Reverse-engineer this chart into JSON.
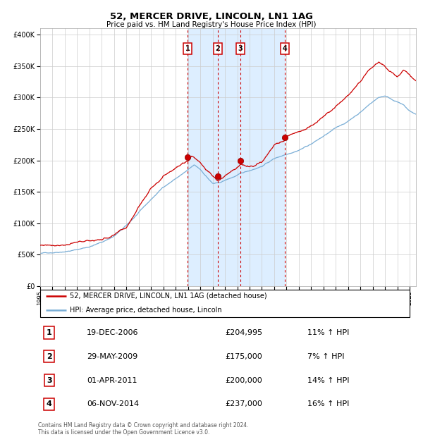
{
  "title": "52, MERCER DRIVE, LINCOLN, LN1 1AG",
  "subtitle": "Price paid vs. HM Land Registry's House Price Index (HPI)",
  "footer": "Contains HM Land Registry data © Crown copyright and database right 2024.\nThis data is licensed under the Open Government Licence v3.0.",
  "legend_line1": "52, MERCER DRIVE, LINCOLN, LN1 1AG (detached house)",
  "legend_line2": "HPI: Average price, detached house, Lincoln",
  "transactions": [
    {
      "label": "1",
      "date": "19-DEC-2006",
      "price": "£204,995",
      "pct": "11% ↑ HPI",
      "year": 2006.97
    },
    {
      "label": "2",
      "date": "29-MAY-2009",
      "price": "£175,000",
      "pct": "7% ↑ HPI",
      "year": 2009.41
    },
    {
      "label": "3",
      "date": "01-APR-2011",
      "price": "£200,000",
      "pct": "14% ↑ HPI",
      "year": 2011.25
    },
    {
      "label": "4",
      "date": "06-NOV-2014",
      "price": "£237,000",
      "pct": "16% ↑ HPI",
      "year": 2014.85
    }
  ],
  "transaction_prices": [
    204995,
    175000,
    200000,
    237000
  ],
  "shade_start": 2006.97,
  "shade_end": 2014.85,
  "red_color": "#cc0000",
  "blue_color": "#7aaed6",
  "shade_color": "#ddeeff",
  "grid_color": "#cccccc",
  "bg_color": "#ffffff",
  "ylim": [
    0,
    410000
  ],
  "xlim_start": 1995.0,
  "xlim_end": 2025.5
}
